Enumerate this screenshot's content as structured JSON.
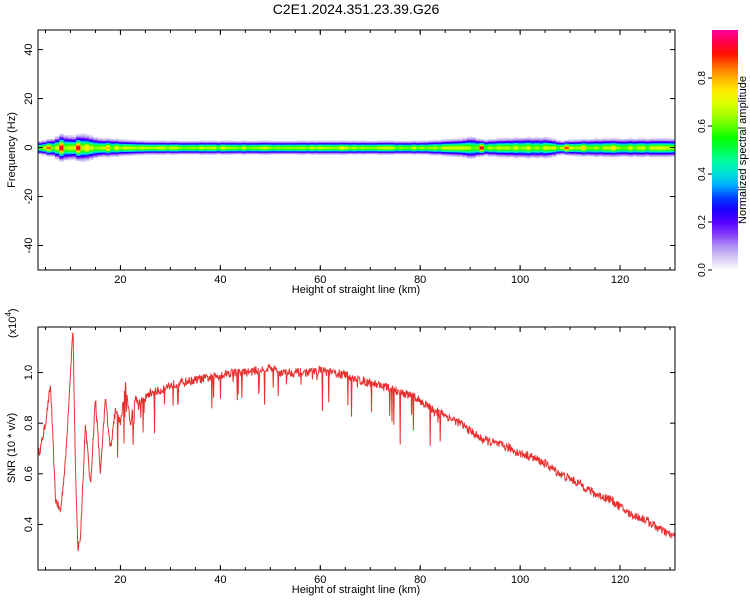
{
  "figure": {
    "title": "C2E1.2024.351.23.39.G26"
  },
  "chart_data": [
    {
      "type": "heatmap",
      "xlabel": "Height of straight line (km)",
      "ylabel": "Frequency (Hz)",
      "xlim": [
        3.5,
        131
      ],
      "ylim": [
        -50,
        48
      ],
      "xticks": [
        20,
        40,
        60,
        80,
        100,
        120
      ],
      "yticks": [
        -40,
        -20,
        0,
        20,
        40
      ],
      "xtick_labels": [
        "20",
        "40",
        "60",
        "80",
        "100",
        "120"
      ],
      "ytick_labels": [
        "-40",
        "-20",
        "0",
        "20",
        "40"
      ],
      "colorbar": {
        "label": "Normalized spectral amplitude",
        "range": [
          0,
          1
        ],
        "ticks": [
          0.0,
          0.2,
          0.4,
          0.6,
          0.8
        ],
        "tick_labels": [
          "0.0",
          "0.2",
          "0.4",
          "0.6",
          "0.8"
        ],
        "colors": [
          "#ffffff",
          "#b4a0f0",
          "#6a00ff",
          "#0000ff",
          "#00c8ff",
          "#00ffa0",
          "#00ff00",
          "#a0ff00",
          "#ffff00",
          "#ffa000",
          "#ff0000",
          "#ff00a0"
        ]
      },
      "band_profile": {
        "x": [
          4,
          6,
          8,
          10,
          12,
          14,
          16,
          18,
          20,
          25,
          30,
          40,
          50,
          60,
          70,
          80,
          88,
          90,
          92,
          95,
          100,
          105,
          108,
          110,
          115,
          120,
          125,
          131
        ],
        "half_width_hz": [
          3,
          4,
          6,
          5,
          6,
          5,
          4,
          4,
          3.5,
          3,
          3,
          3,
          3,
          3,
          3,
          3,
          4,
          5,
          3.5,
          4,
          4.5,
          4.5,
          3,
          3.5,
          4,
          4,
          4,
          4
        ]
      },
      "peaks": [
        {
          "x": 5,
          "amp": 0.9
        },
        {
          "x": 7.5,
          "amp": 1.0
        },
        {
          "x": 11,
          "amp": 0.95
        },
        {
          "x": 12.5,
          "amp": 0.85
        },
        {
          "x": 15,
          "amp": 0.75
        },
        {
          "x": 17,
          "amp": 0.8
        },
        {
          "x": 19,
          "amp": 0.75
        },
        {
          "x": 22,
          "amp": 0.7
        },
        {
          "x": 30,
          "amp": 0.7
        },
        {
          "x": 40,
          "amp": 0.72
        },
        {
          "x": 55,
          "amp": 0.72
        },
        {
          "x": 64,
          "amp": 0.75
        },
        {
          "x": 73,
          "amp": 0.72
        },
        {
          "x": 89,
          "amp": 0.75
        },
        {
          "x": 92,
          "amp": 0.95
        },
        {
          "x": 109,
          "amp": 0.9
        },
        {
          "x": 112,
          "amp": 0.85
        },
        {
          "x": 118,
          "amp": 0.8
        }
      ]
    },
    {
      "type": "line",
      "xlabel": "Height of straight line (km)",
      "ylabel": "SNR (10 * v/v)",
      "yscale_label": "(x10",
      "yscale_exponent": "4",
      "xlim": [
        3.5,
        131
      ],
      "ylim": [
        0.22,
        1.18
      ],
      "xticks": [
        20,
        40,
        60,
        80,
        100,
        120
      ],
      "yticks": [
        0.4,
        0.6,
        0.8,
        1.0
      ],
      "xtick_labels": [
        "20",
        "40",
        "60",
        "80",
        "100",
        "120"
      ],
      "ytick_labels": [
        "0.4",
        "0.6",
        "0.8",
        "1.0"
      ],
      "line_color": "#e83030",
      "series": [
        {
          "x": [
            3.5,
            4,
            5,
            6,
            7,
            8,
            9,
            10,
            10.5,
            11,
            11.5,
            12,
            13,
            14,
            15,
            16,
            17,
            18,
            19,
            20,
            21,
            22,
            23,
            24,
            25,
            26,
            28,
            30,
            32,
            35,
            38,
            40,
            42,
            45,
            48,
            50,
            52,
            55,
            58,
            60,
            62,
            65,
            68,
            70,
            72,
            75,
            78,
            80,
            82,
            85,
            88,
            90,
            92,
            95,
            98,
            100,
            102,
            105,
            108,
            110,
            112,
            115,
            118,
            120,
            122,
            125,
            128,
            131
          ],
          "y": [
            0.68,
            0.7,
            0.8,
            0.95,
            0.5,
            0.45,
            0.65,
            1.0,
            1.18,
            0.6,
            0.3,
            0.35,
            0.8,
            0.55,
            0.9,
            0.6,
            0.9,
            0.7,
            0.85,
            0.8,
            0.95,
            0.8,
            0.9,
            0.88,
            0.9,
            0.92,
            0.93,
            0.95,
            0.96,
            0.97,
            0.98,
            0.99,
            1.0,
            1.0,
            1.01,
            1.02,
            1.0,
            1.0,
            1.0,
            1.01,
            1.0,
            0.99,
            0.97,
            0.96,
            0.95,
            0.93,
            0.91,
            0.89,
            0.86,
            0.83,
            0.8,
            0.77,
            0.74,
            0.72,
            0.7,
            0.68,
            0.67,
            0.64,
            0.6,
            0.58,
            0.56,
            0.52,
            0.5,
            0.47,
            0.44,
            0.42,
            0.38,
            0.35
          ]
        }
      ]
    }
  ]
}
